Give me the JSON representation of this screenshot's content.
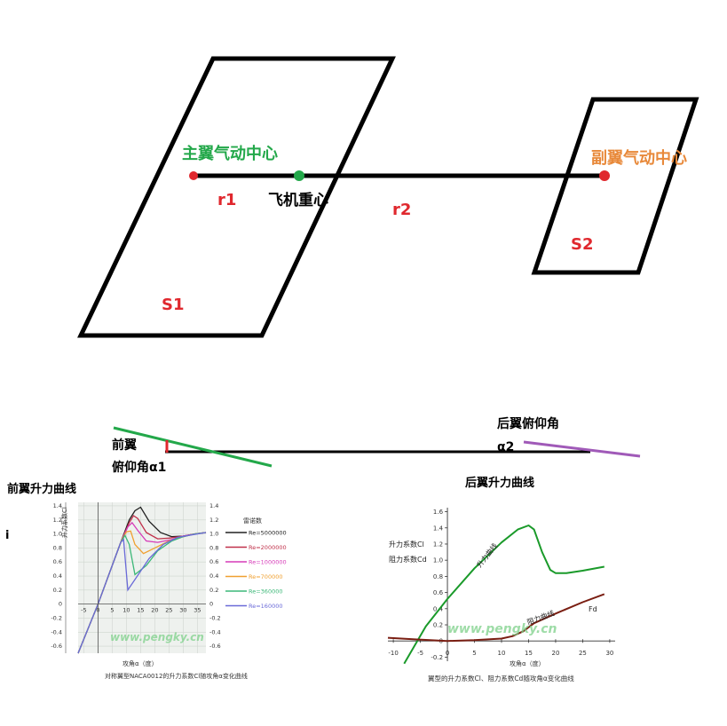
{
  "diagram": {
    "main_wing_center": "主翼气动中心",
    "aux_wing_center": "副翼气动中心",
    "cg": "飞机重心",
    "r1": "r1",
    "r2": "r2",
    "s1": "S1",
    "s2": "S2",
    "front_wing": "前翼",
    "front_pitch": "俯仰角α1",
    "rear_pitch": "后翼俯仰角",
    "alpha2": "α2",
    "front_lift_title": "前翼升力曲线",
    "rear_lift_title": "后翼升力曲线",
    "stray_mark": "i",
    "colors": {
      "red": "#e0282e",
      "green": "#23a84a",
      "orange": "#e8893a",
      "purple": "#a05ab8",
      "black": "#000000"
    }
  },
  "chart_left": {
    "type": "line",
    "ylabel": "升力系数Cl",
    "xlabel": "攻角α（度）",
    "caption": "对称翼型NACA0012的升力系数Cl随攻角α变化曲线",
    "legend_title": "雷诺数",
    "watermark": "www.pengky.cn",
    "x_ticks": [
      "-5",
      "0",
      "5",
      "10",
      "15",
      "20",
      "25",
      "30",
      "35"
    ],
    "y_ticks_left": [
      "1.4",
      "1.2",
      "1.0",
      "0.8",
      "0.6",
      "0.4",
      "0.2",
      "0",
      "-0.2",
      "-0.4",
      "-0.6"
    ],
    "y_ticks_right": [
      "1.4",
      "1.2",
      "1.0",
      "0.8",
      "0.6",
      "0.4",
      "0.2",
      "0",
      "-0.2",
      "-0.4",
      "-0.6"
    ],
    "xlim": [
      -7,
      38
    ],
    "ylim": [
      -0.7,
      1.45
    ],
    "series": [
      {
        "name": "Re=5000000",
        "color": "#222222",
        "x": [
          -7,
          0,
          8,
          11,
          13,
          15,
          18,
          22,
          26,
          30,
          34,
          38
        ],
        "y": [
          -0.7,
          0,
          0.88,
          1.2,
          1.33,
          1.38,
          1.18,
          1.02,
          0.96,
          0.97,
          1.0,
          1.02
        ]
      },
      {
        "name": "Re=2000000",
        "color": "#c0304a",
        "x": [
          -7,
          0,
          8,
          11,
          12.5,
          14,
          17,
          21,
          25,
          30,
          34,
          38
        ],
        "y": [
          -0.7,
          0,
          0.88,
          1.16,
          1.26,
          1.22,
          1.02,
          0.93,
          0.94,
          0.97,
          1.0,
          1.02
        ]
      },
      {
        "name": "Re=1000000",
        "color": "#d63ab8",
        "x": [
          -7,
          0,
          8,
          10.5,
          12,
          14,
          17,
          21,
          26,
          30,
          34,
          38
        ],
        "y": [
          -0.7,
          0,
          0.88,
          1.1,
          1.16,
          1.05,
          0.9,
          0.88,
          0.92,
          0.97,
          1.0,
          1.02
        ]
      },
      {
        "name": "Re=700000",
        "color": "#f0a030",
        "x": [
          -7,
          0,
          8,
          10,
          11.5,
          13,
          16,
          20,
          25,
          30,
          34,
          38
        ],
        "y": [
          -0.7,
          0,
          0.88,
          1.03,
          1.04,
          0.85,
          0.72,
          0.8,
          0.9,
          0.96,
          1.0,
          1.02
        ]
      },
      {
        "name": "Re=360000",
        "color": "#3cb878",
        "x": [
          -7,
          0,
          8,
          9.5,
          11,
          13,
          17,
          21,
          26,
          30,
          34,
          38
        ],
        "y": [
          -0.7,
          0,
          0.88,
          0.98,
          0.85,
          0.42,
          0.55,
          0.76,
          0.9,
          0.96,
          1.0,
          1.02
        ]
      },
      {
        "name": "Re=160000",
        "color": "#6a6ad8",
        "x": [
          -7,
          0,
          8,
          9,
          10.5,
          13,
          18,
          23,
          28,
          32,
          38
        ],
        "y": [
          -0.7,
          0,
          0.88,
          0.92,
          0.2,
          0.35,
          0.65,
          0.85,
          0.95,
          0.98,
          1.02
        ]
      }
    ]
  },
  "chart_right": {
    "type": "line",
    "xlabel": "攻角α（度）",
    "caption": "翼型的升力系数Cl、阻力系数Cd随攻角α变化曲线",
    "legend_lines": [
      "升力系数Cl",
      "阻力系数Cd"
    ],
    "label_lift": "升力曲线",
    "label_drag": "阻力曲线",
    "label_fd": "Fd",
    "watermark": "www.pengky.cn",
    "x_ticks": [
      "-10",
      "-5",
      "0",
      "5",
      "10",
      "15",
      "20",
      "25",
      "30"
    ],
    "y_ticks": [
      "1.6",
      "1.4",
      "1.2",
      "1.0",
      "0.8",
      "0.6",
      "0.4",
      "0.2",
      "0",
      "-0.2"
    ],
    "xlim": [
      -11,
      31
    ],
    "ylim": [
      -0.25,
      1.65
    ],
    "series": [
      {
        "name": "升力曲线",
        "color": "#1a9a2a",
        "x": [
          -8,
          -4,
          0,
          5,
          10,
          13,
          15,
          16,
          17.5,
          19,
          20,
          22,
          25,
          29
        ],
        "y": [
          -0.28,
          0.18,
          0.52,
          0.9,
          1.22,
          1.38,
          1.43,
          1.38,
          1.1,
          0.88,
          0.84,
          0.84,
          0.87,
          0.92
        ]
      },
      {
        "name": "阻力曲线",
        "color": "#7a1e12",
        "x": [
          -11,
          -6,
          0,
          5,
          10,
          12,
          14,
          16,
          20,
          25,
          29
        ],
        "y": [
          0.04,
          0.02,
          0.0,
          0.01,
          0.03,
          0.06,
          0.12,
          0.22,
          0.34,
          0.48,
          0.58
        ]
      }
    ]
  }
}
